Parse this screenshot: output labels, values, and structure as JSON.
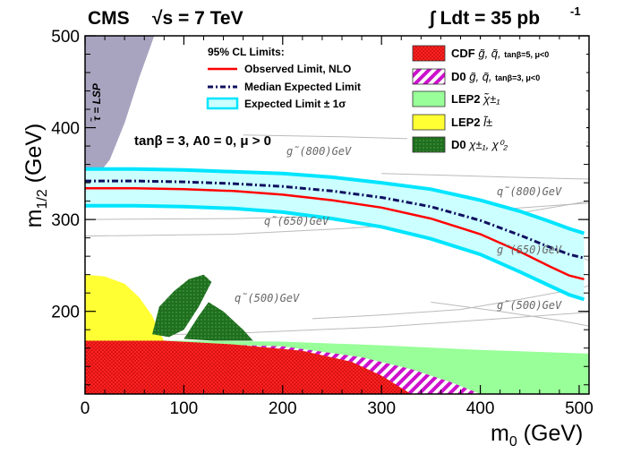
{
  "header": {
    "experiment": "CMS",
    "energy": "√s = 7 TeV",
    "lumi": "∫ Ldt = 35 pb",
    "lumi_sup": "-1"
  },
  "chart_data": {
    "type": "line",
    "title": "CMS √s = 7 TeV, ∫ Ldt = 35 pb-1",
    "xlabel": "m0 (GeV)",
    "ylabel": "m1/2 (GeV)",
    "xlim": [
      0,
      510
    ],
    "ylim": [
      110,
      500
    ],
    "xticks": [
      0,
      100,
      200,
      300,
      400,
      500
    ],
    "yticks": [
      200,
      300,
      400,
      500
    ],
    "annotation_params": "tanβ = 3, A0 = 0, μ > 0",
    "stau_lsp_label": "τ̃ = LSP",
    "legend_title": "95% CL  Limits:",
    "series": [
      {
        "name": "Observed Limit, NLO",
        "color": "#ff0000",
        "style": "solid",
        "x": [
          0,
          50,
          100,
          150,
          200,
          250,
          300,
          350,
          400,
          440,
          470,
          490,
          505
        ],
        "y": [
          334,
          334,
          333,
          331,
          327,
          321,
          313,
          301,
          284,
          265,
          249,
          239,
          235
        ]
      },
      {
        "name": "Median Expected Limit",
        "color": "#101060",
        "style": "dashdot",
        "x": [
          0,
          50,
          100,
          150,
          200,
          250,
          300,
          350,
          400,
          440,
          470,
          490,
          505
        ],
        "y": [
          342,
          342,
          341,
          339,
          336,
          331,
          324,
          314,
          299,
          283,
          270,
          262,
          258
        ]
      },
      {
        "name": "Expected Limit ± 1σ",
        "color": "#00e5ff",
        "style": "band",
        "x": [
          0,
          50,
          100,
          150,
          200,
          250,
          300,
          350,
          400,
          440,
          470,
          490,
          505
        ],
        "upper": [
          355,
          355,
          354,
          352,
          350,
          346,
          340,
          333,
          321,
          309,
          298,
          290,
          285
        ],
        "lower": [
          315,
          315,
          314,
          312,
          308,
          301,
          292,
          279,
          262,
          243,
          228,
          218,
          213
        ]
      }
    ],
    "contours": [
      {
        "label": "q̃(500)GeV"
      },
      {
        "label": "g̃(500)GeV"
      },
      {
        "label": "q̃(650)GeV"
      },
      {
        "label": "g̃(650)GeV"
      },
      {
        "label": "q̃(800)GeV"
      },
      {
        "label": "g̃(800)GeV"
      }
    ],
    "excluded_regions": [
      {
        "experiment": "CDF",
        "description": "g̃, q̃, tanβ=5, μ<0",
        "color": "#ff1a1a"
      },
      {
        "experiment": "D0",
        "description": "g̃, q̃, tanβ=3, μ<0",
        "color": "#cc00cc"
      },
      {
        "experiment": "LEP2",
        "description": "χ̃±1",
        "color": "#99ff99"
      },
      {
        "experiment": "LEP2",
        "description": "l̃±",
        "color": "#ffff33"
      },
      {
        "experiment": "D0",
        "description": "χ±1, χ02",
        "color": "#1a7a1a"
      }
    ],
    "stau_region_color": "#a8a4c0"
  },
  "legend": {
    "title": "95% CL  Limits:",
    "items": [
      "Observed Limit, NLO",
      "Median Expected Limit",
      "Expected Limit ± 1σ"
    ]
  },
  "legend2": {
    "items": [
      {
        "exp": "CDF",
        "desc": "g̃, q̃,",
        "sub": "tanβ=5, μ<0"
      },
      {
        "exp": "D0",
        "desc": "g̃, q̃,",
        "sub": "tanβ=3, μ<0"
      },
      {
        "exp": "LEP2",
        "desc": "χ̃±₁",
        "sub": ""
      },
      {
        "exp": "LEP2",
        "desc": "l̃±",
        "sub": ""
      },
      {
        "exp": "D0",
        "desc": "χ±₁, χ⁰₂",
        "sub": ""
      }
    ]
  },
  "axes": {
    "x_label": "m",
    "x_label_sub": "0",
    "x_label_unit": " (GeV)",
    "y_label": "m",
    "y_label_sub": "1/2",
    "y_label_unit": " (GeV)"
  }
}
